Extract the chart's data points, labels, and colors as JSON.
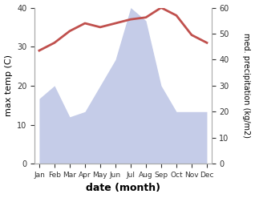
{
  "months": [
    "Jan",
    "Feb",
    "Mar",
    "Apr",
    "May",
    "Jun",
    "Jul",
    "Aug",
    "Sep",
    "Oct",
    "Nov",
    "Dec"
  ],
  "temperature": [
    29,
    31,
    34,
    36,
    35,
    36,
    37,
    37.5,
    40,
    38,
    33,
    31
  ],
  "precipitation": [
    25,
    30,
    18,
    20,
    30,
    40,
    60,
    55,
    30,
    20,
    20,
    20
  ],
  "temp_color": "#c0504d",
  "precip_fill_color": "#c5cce8",
  "left_ylim": [
    0,
    40
  ],
  "right_ylim": [
    0,
    60
  ],
  "left_yticks": [
    0,
    10,
    20,
    30,
    40
  ],
  "right_yticks": [
    0,
    10,
    20,
    30,
    40,
    50,
    60
  ],
  "xlabel": "date (month)",
  "ylabel_left": "max temp (C)",
  "ylabel_right": "med. precipitation (kg/m2)",
  "figsize": [
    3.18,
    2.47
  ],
  "dpi": 100
}
